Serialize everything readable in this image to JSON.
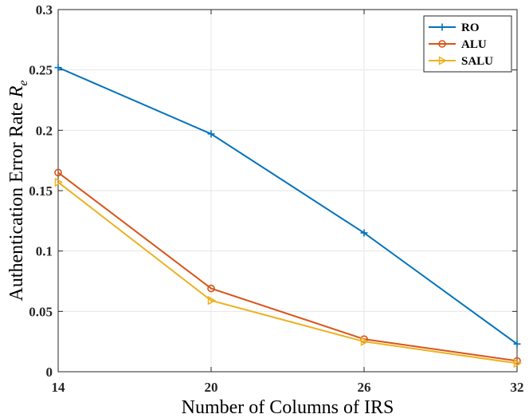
{
  "chart_data": {
    "type": "line",
    "title": "",
    "xlabel": "Number of Columns of IRS",
    "ylabel_main": "Authentication Error Rate ",
    "ylabel_symbol": "R",
    "ylabel_subscript": "e",
    "x": [
      14,
      20,
      26,
      32
    ],
    "xticks": [
      "14",
      "20",
      "26",
      "32"
    ],
    "xlim": [
      14,
      32
    ],
    "ylim": [
      0,
      0.3
    ],
    "yticks": [
      0,
      0.05,
      0.1,
      0.15,
      0.2,
      0.25,
      0.3
    ],
    "ytick_labels": [
      "0",
      "0.05",
      "0.1",
      "0.15",
      "0.2",
      "0.25",
      "0.3"
    ],
    "grid": true,
    "legend_position": "top-right",
    "series": [
      {
        "name": "RO",
        "color": "#0072BD",
        "marker": "plus",
        "values": [
          0.252,
          0.197,
          0.115,
          0.023
        ]
      },
      {
        "name": "ALU",
        "color": "#D95319",
        "marker": "circle",
        "values": [
          0.165,
          0.069,
          0.027,
          0.009
        ]
      },
      {
        "name": "SALU",
        "color": "#EDB120",
        "marker": "triangle-right",
        "values": [
          0.157,
          0.059,
          0.025,
          0.007
        ]
      }
    ]
  }
}
